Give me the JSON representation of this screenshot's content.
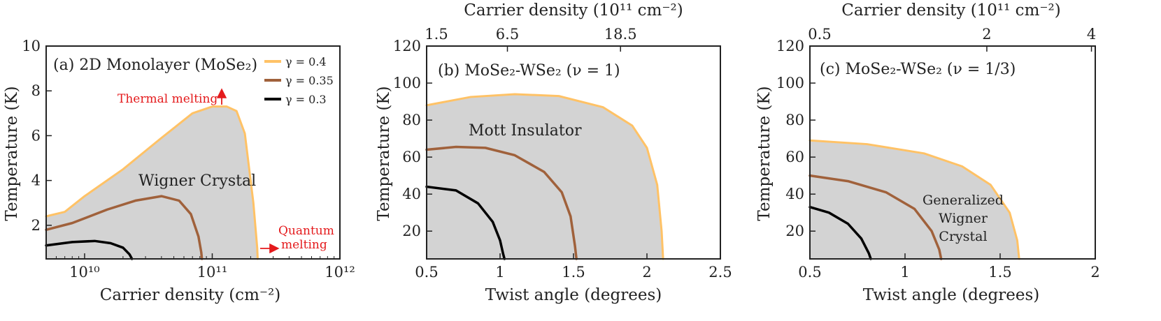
{
  "colors": {
    "gamma_04": "#ffc266",
    "gamma_035": "#a0613b",
    "gamma_03": "#000000",
    "fill": "#d3d3d3",
    "annotation": "#e41a1c"
  },
  "chart_data": [
    {
      "type": "line",
      "panel": "a",
      "title": "(a) 2D Monolayer (MoSe₂)",
      "xlabel": "Carrier density (cm⁻²)",
      "ylabel": "Temperature (K)",
      "xscale": "log",
      "xlim": [
        5000000000.0,
        1000000000000.0
      ],
      "ylim": [
        0.5,
        10
      ],
      "x_ticks": [
        {
          "value": 10000000000.0,
          "label": "10¹⁰"
        },
        {
          "value": 100000000000.0,
          "label": "10¹¹"
        },
        {
          "value": 1000000000000.0,
          "label": "10¹²"
        }
      ],
      "y_ticks": [
        2,
        4,
        6,
        8,
        10
      ],
      "region_label": "Wigner Crystal",
      "annotations": [
        "Thermal melting",
        "Quantum",
        "melting"
      ],
      "legend_position": "top-right",
      "legend": [
        "γ = 0.4",
        "γ = 0.35",
        "γ = 0.3"
      ],
      "series": [
        {
          "name": "γ = 0.4",
          "color_key": "gamma_04",
          "x": [
            5000000000.0,
            7000000000.0,
            10000000000.0,
            20000000000.0,
            40000000000.0,
            70000000000.0,
            100000000000.0,
            130000000000.0,
            155000000000.0,
            180000000000.0,
            210000000000.0,
            225000000000.0,
            227000000000.0
          ],
          "y": [
            2.4,
            2.6,
            3.3,
            4.5,
            5.9,
            7.0,
            7.3,
            7.3,
            7.1,
            6.1,
            3.0,
            1.0,
            0.5
          ]
        },
        {
          "name": "γ = 0.35",
          "color_key": "gamma_035",
          "x": [
            5000000000.0,
            8000000000.0,
            15000000000.0,
            25000000000.0,
            40000000000.0,
            55000000000.0,
            68000000000.0,
            78000000000.0,
            82000000000.0,
            83000000000.0
          ],
          "y": [
            1.8,
            2.1,
            2.7,
            3.1,
            3.3,
            3.1,
            2.5,
            1.5,
            0.8,
            0.5
          ]
        },
        {
          "name": "γ = 0.3",
          "color_key": "gamma_03",
          "x": [
            5000000000.0,
            8000000000.0,
            12000000000.0,
            16000000000.0,
            20000000000.0,
            22500000000.0,
            23500000000.0
          ],
          "y": [
            1.1,
            1.25,
            1.3,
            1.2,
            1.0,
            0.7,
            0.5
          ]
        }
      ]
    },
    {
      "type": "line",
      "panel": "b",
      "title": "(b) MoSe₂-WSe₂ (ν = 1)",
      "xlabel": "Twist angle (degrees)",
      "ylabel": "Temperature (K)",
      "top_xlabel": "Carrier density (10¹¹ cm⁻²)",
      "xlim": [
        0.5,
        2.5
      ],
      "ylim": [
        5,
        120
      ],
      "x_ticks": [
        0.5,
        1,
        1.5,
        2,
        2.5
      ],
      "y_ticks": [
        20,
        40,
        60,
        80,
        100,
        120
      ],
      "top_ticks": [
        {
          "value": 0.5,
          "label": "1.5"
        },
        {
          "value": 1.05,
          "label": "6.5"
        },
        {
          "value": 1.82,
          "label": "18.5"
        }
      ],
      "region_label": "Mott Insulator",
      "series": [
        {
          "name": "γ = 0.4",
          "color_key": "gamma_04",
          "x": [
            0.5,
            0.8,
            1.1,
            1.4,
            1.7,
            1.9,
            2.0,
            2.07,
            2.1,
            2.11
          ],
          "y": [
            88,
            92.5,
            94,
            93,
            87,
            77,
            65,
            45,
            20,
            5
          ]
        },
        {
          "name": "γ = 0.35",
          "color_key": "gamma_035",
          "x": [
            0.5,
            0.7,
            0.9,
            1.1,
            1.3,
            1.42,
            1.48,
            1.51,
            1.52
          ],
          "y": [
            64,
            65.5,
            65,
            61,
            52,
            41,
            28,
            12,
            5
          ]
        },
        {
          "name": "γ = 0.3",
          "color_key": "gamma_03",
          "x": [
            0.5,
            0.7,
            0.85,
            0.95,
            1.0,
            1.02,
            1.03
          ],
          "y": [
            44,
            42,
            35,
            25,
            15,
            8,
            5
          ]
        }
      ]
    },
    {
      "type": "line",
      "panel": "c",
      "title": "(c) MoSe₂-WSe₂ (ν = 1/3)",
      "xlabel": "Twist angle (degrees)",
      "ylabel": "Temperature (K)",
      "top_xlabel": "Carrier density (10¹¹ cm⁻²)",
      "xlim": [
        0.5,
        2
      ],
      "ylim": [
        5,
        120
      ],
      "x_ticks": [
        0.5,
        1,
        1.5,
        2
      ],
      "y_ticks": [
        20,
        40,
        60,
        80,
        100,
        120
      ],
      "top_ticks": [
        {
          "value": 0.5,
          "label": "0.5"
        },
        {
          "value": 1.43,
          "label": "2"
        },
        {
          "value": 1.98,
          "label": "4"
        }
      ],
      "region_label_lines": [
        "Generalized",
        "Wigner",
        "Crystal"
      ],
      "series": [
        {
          "name": "γ = 0.4",
          "color_key": "gamma_04",
          "x": [
            0.5,
            0.8,
            1.1,
            1.3,
            1.45,
            1.55,
            1.59,
            1.6
          ],
          "y": [
            69,
            67,
            62,
            55,
            45,
            30,
            15,
            5
          ]
        },
        {
          "name": "γ = 0.35",
          "color_key": "gamma_035",
          "x": [
            0.5,
            0.7,
            0.9,
            1.05,
            1.14,
            1.18,
            1.19
          ],
          "y": [
            50,
            47,
            41,
            32,
            20,
            10,
            5
          ]
        },
        {
          "name": "γ = 0.3",
          "color_key": "gamma_03",
          "x": [
            0.5,
            0.6,
            0.7,
            0.77,
            0.81,
            0.82
          ],
          "y": [
            33,
            30,
            24,
            16,
            8,
            5
          ]
        }
      ]
    }
  ]
}
